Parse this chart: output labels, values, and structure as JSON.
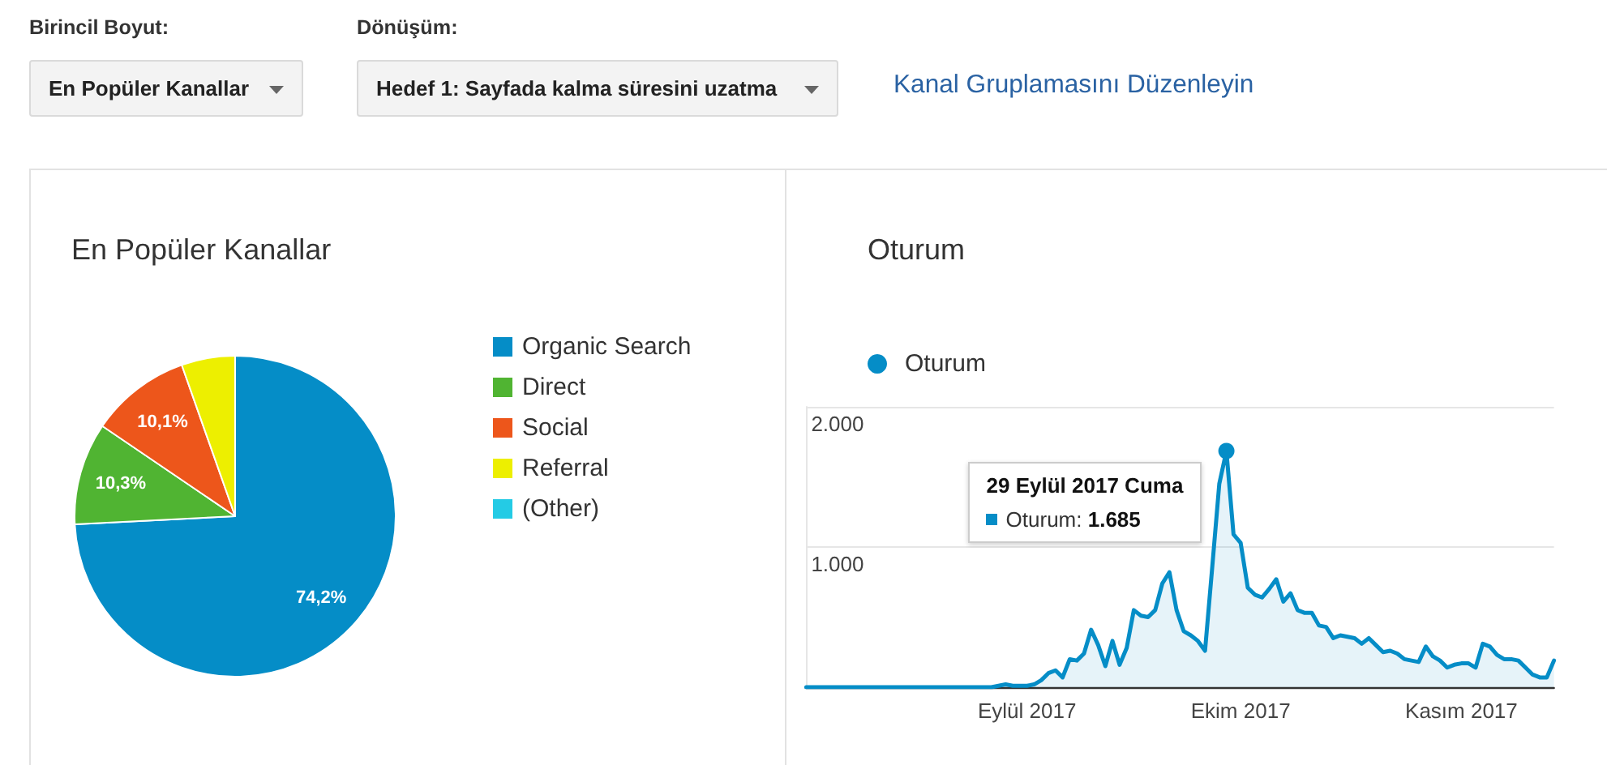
{
  "chart_data": [
    {
      "type": "other",
      "annotations": [
        "Birincil Boyut:",
        "En Popüler Kanallar",
        "Dönüşüm:",
        "Hedef 1: Sayfada kalma süresini uzatma",
        "Kanal Gruplamasını Düzenleyin"
      ]
    },
    {
      "type": "pie",
      "title": "En Popüler Kanallar",
      "categories": [
        "Organic Search",
        "Direct",
        "Social",
        "Referral",
        "(Other)"
      ],
      "values": [
        74.2,
        10.3,
        10.1,
        5.4,
        0
      ],
      "colors": [
        "#058dc7",
        "#50b432",
        "#ed561b",
        "#edef00",
        "#24cbe5"
      ],
      "value_labels": [
        "74,2%",
        "10,3%",
        "10,1%",
        null,
        null
      ],
      "legend": "right"
    },
    {
      "type": "area",
      "title": "Oturum",
      "x": [
        "2017-08-01",
        "2017-08-02",
        "2017-08-03",
        "2017-08-04",
        "2017-08-05",
        "2017-08-06",
        "2017-08-07",
        "2017-08-08",
        "2017-08-09",
        "2017-08-10",
        "2017-08-11",
        "2017-08-12",
        "2017-08-13",
        "2017-08-14",
        "2017-08-15",
        "2017-08-16",
        "2017-08-17",
        "2017-08-18",
        "2017-08-19",
        "2017-08-20",
        "2017-08-21",
        "2017-08-22",
        "2017-08-23",
        "2017-08-24",
        "2017-08-25",
        "2017-08-26",
        "2017-08-27",
        "2017-08-28",
        "2017-08-29",
        "2017-08-30",
        "2017-08-31",
        "2017-09-01",
        "2017-09-02",
        "2017-09-03",
        "2017-09-04",
        "2017-09-05",
        "2017-09-06",
        "2017-09-07",
        "2017-09-08",
        "2017-09-09",
        "2017-09-10",
        "2017-09-11",
        "2017-09-12",
        "2017-09-13",
        "2017-09-14",
        "2017-09-15",
        "2017-09-16",
        "2017-09-17",
        "2017-09-18",
        "2017-09-19",
        "2017-09-20",
        "2017-09-21",
        "2017-09-22",
        "2017-09-23",
        "2017-09-24",
        "2017-09-25",
        "2017-09-26",
        "2017-09-27",
        "2017-09-28",
        "2017-09-29",
        "2017-09-30",
        "2017-10-01",
        "2017-10-02",
        "2017-10-03",
        "2017-10-04",
        "2017-10-05",
        "2017-10-06",
        "2017-10-07",
        "2017-10-08",
        "2017-10-09",
        "2017-10-10",
        "2017-10-11",
        "2017-10-12",
        "2017-10-13",
        "2017-10-14",
        "2017-10-15",
        "2017-10-16",
        "2017-10-17",
        "2017-10-18",
        "2017-10-19",
        "2017-10-20",
        "2017-10-21",
        "2017-10-22",
        "2017-10-23",
        "2017-10-24",
        "2017-10-25",
        "2017-10-26",
        "2017-10-27",
        "2017-10-28",
        "2017-10-29",
        "2017-10-30",
        "2017-10-31",
        "2017-11-01",
        "2017-11-02",
        "2017-11-03",
        "2017-11-04",
        "2017-11-05",
        "2017-11-06",
        "2017-11-07",
        "2017-11-08",
        "2017-11-09",
        "2017-11-10",
        "2017-11-11",
        "2017-11-12",
        "2017-11-13",
        "2017-11-14"
      ],
      "series": [
        {
          "name": "Oturum",
          "color": "#058dc7",
          "values": [
            0,
            0,
            0,
            0,
            0,
            0,
            0,
            0,
            0,
            0,
            0,
            0,
            0,
            0,
            0,
            0,
            0,
            0,
            0,
            0,
            0,
            0,
            0,
            0,
            0,
            0,
            0,
            10,
            20,
            10,
            10,
            10,
            20,
            50,
            100,
            120,
            70,
            200,
            190,
            240,
            410,
            300,
            150,
            330,
            160,
            280,
            550,
            510,
            500,
            550,
            740,
            820,
            550,
            400,
            370,
            330,
            260,
            850,
            1450,
            1685,
            1090,
            1030,
            710,
            660,
            640,
            700,
            770,
            610,
            670,
            550,
            530,
            530,
            440,
            430,
            350,
            370,
            360,
            350,
            310,
            350,
            300,
            250,
            260,
            240,
            200,
            190,
            180,
            290,
            220,
            190,
            140,
            160,
            170,
            170,
            140,
            310,
            290,
            230,
            200,
            200,
            190,
            140,
            90,
            70,
            70,
            190
          ]
        }
      ],
      "xlim": [
        "2017-08-01",
        "2017-11-14"
      ],
      "xticks": [
        {
          "value": "2017-09-01",
          "label": "Eylül 2017"
        },
        {
          "value": "2017-10-01",
          "label": "Ekim 2017"
        },
        {
          "value": "2017-11-01",
          "label": "Kasım 2017"
        }
      ],
      "ylim": [
        0,
        2000
      ],
      "yticks": [
        {
          "value": 0,
          "label": null
        },
        {
          "value": 1000,
          "label": "1.000"
        },
        {
          "value": 2000,
          "label": "2.000"
        }
      ],
      "grid": "y",
      "legend": "top left",
      "annotations": [
        {
          "text": "29 Eylül 2017 Cuma\nOturum: 1.685",
          "x": "2017-09-29",
          "y": 1685
        }
      ]
    }
  ]
}
